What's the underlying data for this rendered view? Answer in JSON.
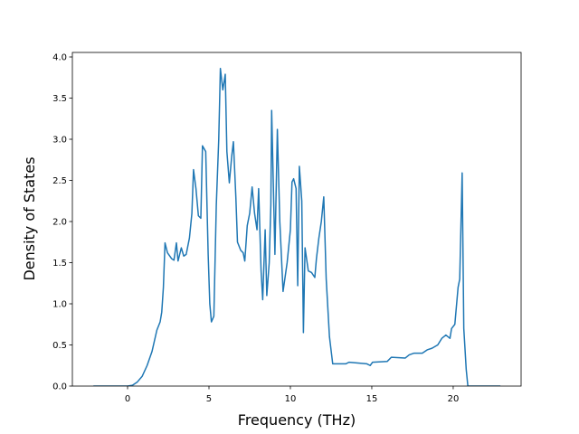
{
  "chart_data": {
    "type": "line",
    "x_label": "Frequency (THz)",
    "y_label": "Density of States",
    "xlim": [
      -3.39,
      24.17
    ],
    "ylim": [
      0,
      4.055
    ],
    "xticks": [
      0,
      5,
      10,
      15,
      20
    ],
    "yticks": [
      {
        "value": 0,
        "label": "0.0"
      },
      {
        "value": 0.5,
        "label": "0.5"
      },
      {
        "value": 1,
        "label": "1.0"
      },
      {
        "value": 1.5,
        "label": "1.5"
      },
      {
        "value": 2,
        "label": "2.0"
      },
      {
        "value": 2.5,
        "label": "2.5"
      },
      {
        "value": 3,
        "label": "3.0"
      },
      {
        "value": 3.5,
        "label": "3.5"
      },
      {
        "value": 4,
        "label": "4.0"
      }
    ],
    "grid": false,
    "series": [
      {
        "color": "#1f77b4",
        "x": [
          -2.1,
          0,
          0.3,
          0.6,
          0.9,
          1.2,
          1.5,
          1.8,
          2.0,
          2.1,
          2.2,
          2.3,
          2.45,
          2.7,
          2.85,
          3.0,
          3.1,
          3.3,
          3.45,
          3.6,
          3.8,
          3.95,
          4.05,
          4.2,
          4.35,
          4.5,
          4.6,
          4.8,
          4.95,
          5.05,
          5.15,
          5.3,
          5.45,
          5.6,
          5.7,
          5.85,
          6.0,
          6.1,
          6.25,
          6.4,
          6.5,
          6.65,
          6.75,
          6.95,
          7.1,
          7.2,
          7.35,
          7.5,
          7.65,
          7.8,
          7.95,
          8.05,
          8.2,
          8.3,
          8.45,
          8.55,
          8.7,
          8.8,
          8.85,
          9.05,
          9.2,
          9.35,
          9.55,
          9.8,
          10.0,
          10.1,
          10.2,
          10.35,
          10.45,
          10.55,
          10.7,
          10.8,
          10.9,
          11.1,
          11.3,
          11.5,
          11.6,
          11.75,
          11.9,
          12.05,
          12.2,
          12.4,
          12.6,
          13.4,
          13.6,
          14.7,
          14.9,
          15.05,
          15.95,
          16.2,
          17.05,
          17.3,
          17.6,
          18.1,
          18.4,
          18.7,
          19.05,
          19.3,
          19.55,
          19.8,
          19.9,
          20.1,
          20.3,
          20.4,
          20.55,
          20.65,
          20.8,
          20.9,
          22.9
        ],
        "values": [
          0,
          0,
          0.01,
          0.05,
          0.12,
          0.25,
          0.42,
          0.68,
          0.78,
          0.9,
          1.2,
          1.74,
          1.62,
          1.55,
          1.53,
          1.74,
          1.52,
          1.68,
          1.58,
          1.6,
          1.8,
          2.1,
          2.63,
          2.4,
          2.07,
          2.04,
          2.92,
          2.85,
          1.6,
          1.0,
          0.78,
          0.85,
          2.2,
          3.0,
          3.86,
          3.6,
          3.79,
          2.85,
          2.47,
          2.8,
          2.97,
          2.3,
          1.75,
          1.65,
          1.62,
          1.52,
          1.95,
          2.1,
          2.42,
          2.1,
          1.9,
          2.4,
          1.4,
          1.05,
          1.9,
          1.1,
          1.5,
          2.2,
          3.35,
          1.6,
          3.12,
          2.0,
          1.15,
          1.5,
          1.9,
          2.48,
          2.52,
          2.4,
          1.22,
          2.67,
          2.25,
          0.65,
          1.68,
          1.4,
          1.38,
          1.32,
          1.55,
          1.8,
          2.0,
          2.3,
          1.3,
          0.6,
          0.27,
          0.27,
          0.29,
          0.27,
          0.25,
          0.29,
          0.3,
          0.35,
          0.34,
          0.38,
          0.4,
          0.4,
          0.44,
          0.46,
          0.5,
          0.58,
          0.62,
          0.58,
          0.7,
          0.75,
          1.2,
          1.3,
          2.59,
          0.7,
          0.2,
          0,
          0
        ]
      }
    ]
  }
}
